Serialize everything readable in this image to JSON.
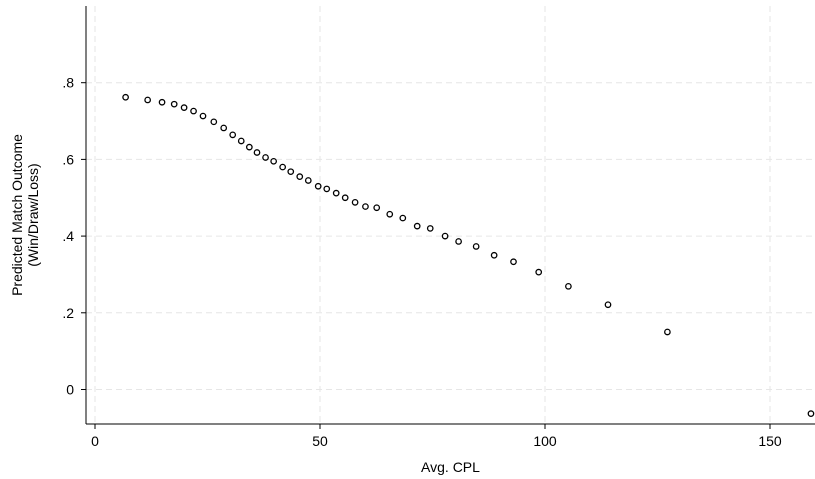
{
  "chart_data": {
    "type": "scatter",
    "xlabel": "Avg. CPL",
    "ylabel_lines": [
      "Predicted Match Outcome",
      "(Win/Draw/Loss)"
    ],
    "xlim": [
      -2,
      160
    ],
    "ylim": [
      -0.09,
      1.0
    ],
    "x_ticks": [
      {
        "value": 0,
        "label": "0"
      },
      {
        "value": 50,
        "label": "50"
      },
      {
        "value": 100,
        "label": "100"
      },
      {
        "value": 150,
        "label": "150"
      }
    ],
    "y_ticks": [
      {
        "value": 0,
        "label": "0"
      },
      {
        "value": 0.2,
        "label": ".2"
      },
      {
        "value": 0.4,
        "label": ".4"
      },
      {
        "value": 0.6,
        "label": ".6"
      },
      {
        "value": 0.8,
        "label": ".8"
      }
    ],
    "grid": true,
    "marker": "hollow-circle",
    "points": [
      {
        "x": 6.8,
        "y": 0.762
      },
      {
        "x": 11.7,
        "y": 0.755
      },
      {
        "x": 14.9,
        "y": 0.749
      },
      {
        "x": 17.6,
        "y": 0.744
      },
      {
        "x": 19.8,
        "y": 0.735
      },
      {
        "x": 21.9,
        "y": 0.726
      },
      {
        "x": 24.0,
        "y": 0.713
      },
      {
        "x": 26.4,
        "y": 0.698
      },
      {
        "x": 28.6,
        "y": 0.682
      },
      {
        "x": 30.6,
        "y": 0.664
      },
      {
        "x": 32.5,
        "y": 0.648
      },
      {
        "x": 34.3,
        "y": 0.632
      },
      {
        "x": 36.0,
        "y": 0.618
      },
      {
        "x": 37.9,
        "y": 0.605
      },
      {
        "x": 39.7,
        "y": 0.595
      },
      {
        "x": 41.7,
        "y": 0.58
      },
      {
        "x": 43.5,
        "y": 0.568
      },
      {
        "x": 45.5,
        "y": 0.555
      },
      {
        "x": 47.4,
        "y": 0.545
      },
      {
        "x": 49.6,
        "y": 0.53
      },
      {
        "x": 51.5,
        "y": 0.523
      },
      {
        "x": 53.6,
        "y": 0.512
      },
      {
        "x": 55.6,
        "y": 0.5
      },
      {
        "x": 57.8,
        "y": 0.488
      },
      {
        "x": 60.1,
        "y": 0.477
      },
      {
        "x": 62.6,
        "y": 0.474
      },
      {
        "x": 65.5,
        "y": 0.457
      },
      {
        "x": 68.4,
        "y": 0.447
      },
      {
        "x": 71.6,
        "y": 0.426
      },
      {
        "x": 74.5,
        "y": 0.42
      },
      {
        "x": 77.8,
        "y": 0.4
      },
      {
        "x": 80.8,
        "y": 0.386
      },
      {
        "x": 84.7,
        "y": 0.373
      },
      {
        "x": 88.7,
        "y": 0.35
      },
      {
        "x": 93.0,
        "y": 0.333
      },
      {
        "x": 98.6,
        "y": 0.306
      },
      {
        "x": 105.2,
        "y": 0.269
      },
      {
        "x": 114.0,
        "y": 0.221
      },
      {
        "x": 127.2,
        "y": 0.15
      },
      {
        "x": 159.1,
        "y": -0.063
      }
    ]
  }
}
